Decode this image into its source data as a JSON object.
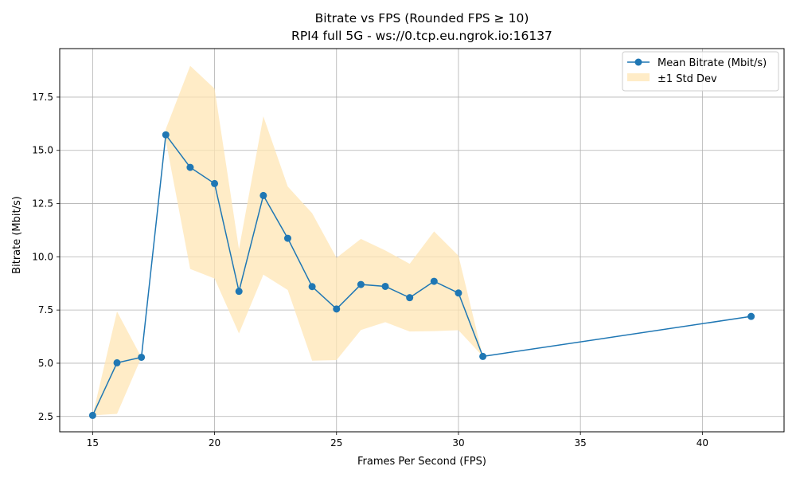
{
  "chart_data": {
    "type": "line",
    "title": "Bitrate vs FPS (Rounded FPS ≥ 10)",
    "subtitle": "RPI4 full 5G - ws://0.tcp.eu.ngrok.io:16137",
    "xlabel": "Frames Per Second (FPS)",
    "ylabel": "Bitrate (Mbit/s)",
    "xlim": [
      13.65,
      43.35
    ],
    "ylim": [
      1.78,
      19.78
    ],
    "xticks": [
      15,
      20,
      25,
      30,
      35,
      40
    ],
    "yticks": [
      2.5,
      5.0,
      7.5,
      10.0,
      12.5,
      15.0,
      17.5
    ],
    "xtick_labels": [
      "15",
      "20",
      "25",
      "30",
      "35",
      "40"
    ],
    "ytick_labels": [
      "2.5",
      "5.0",
      "7.5",
      "10.0",
      "12.5",
      "15.0",
      "17.5"
    ],
    "grid": true,
    "legend_position": "top-right",
    "series": [
      {
        "name": "Mean Bitrate (Mbit/s)",
        "color": "#1f77b4",
        "marker": "circle",
        "x": [
          15,
          16,
          17,
          18,
          19,
          20,
          21,
          22,
          23,
          24,
          25,
          26,
          27,
          28,
          29,
          30,
          31,
          42
        ],
        "y": [
          2.55,
          5.02,
          5.28,
          15.73,
          14.2,
          13.44,
          8.38,
          12.88,
          10.87,
          8.6,
          7.55,
          8.7,
          8.61,
          8.08,
          8.85,
          8.3,
          5.32,
          7.2
        ]
      }
    ],
    "band": {
      "name": "±1 Std Dev",
      "color": "#ffe5b4",
      "x": [
        15,
        16,
        17,
        18,
        19,
        20,
        21,
        22,
        23,
        24,
        25,
        26,
        27,
        28,
        29,
        30,
        31
      ],
      "upper": [
        2.55,
        7.43,
        5.28,
        16.0,
        18.97,
        17.9,
        10.36,
        16.6,
        13.3,
        12.05,
        9.95,
        10.84,
        10.3,
        9.67,
        11.19,
        10.05,
        5.32
      ],
      "lower": [
        2.55,
        2.62,
        5.28,
        15.46,
        9.43,
        8.98,
        6.4,
        9.16,
        8.44,
        5.12,
        5.15,
        6.56,
        6.93,
        6.49,
        6.51,
        6.55,
        5.32
      ]
    }
  }
}
